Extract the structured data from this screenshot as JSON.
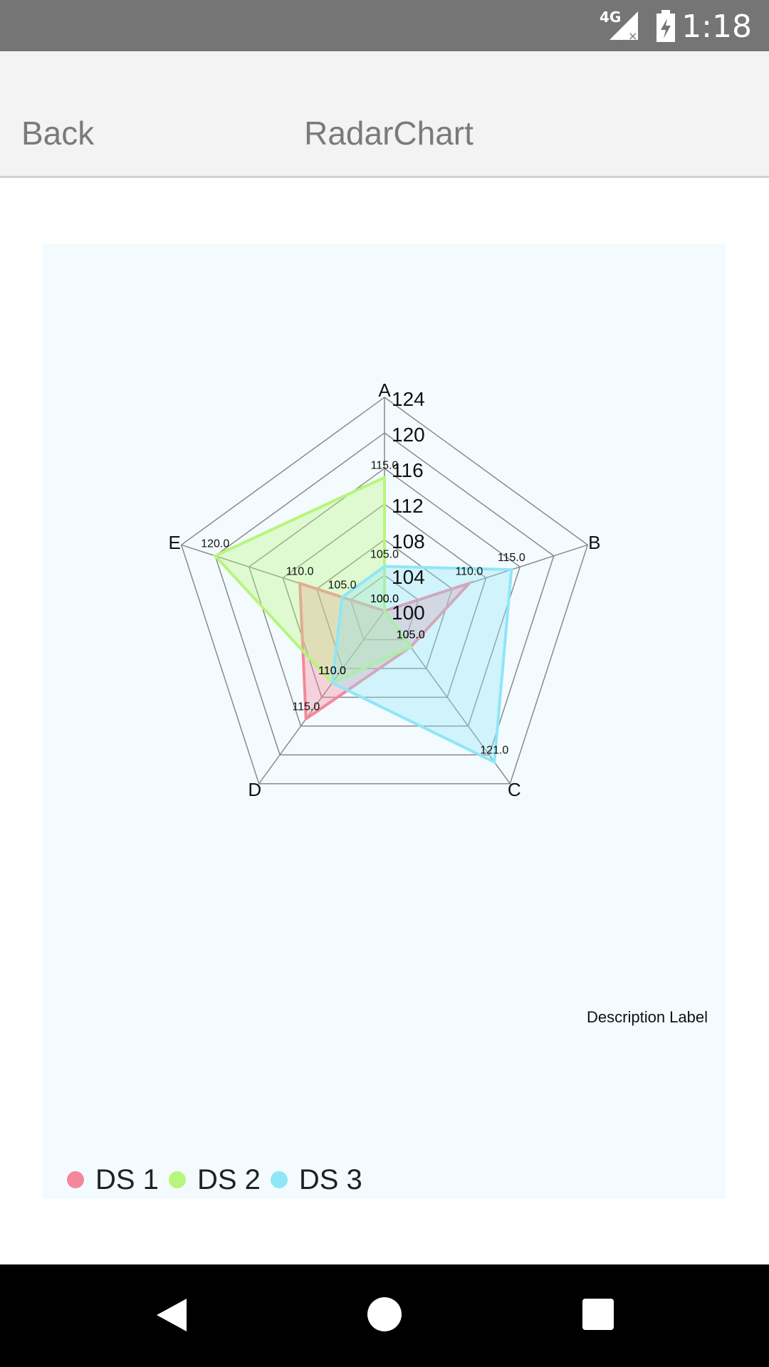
{
  "status_bar": {
    "network": "4G",
    "time": "1:18"
  },
  "header": {
    "back_label": "Back",
    "title": "RadarChart"
  },
  "chart_data": {
    "type": "radar",
    "axes": [
      "A",
      "B",
      "C",
      "D",
      "E"
    ],
    "r_min": 100,
    "r_max": 124,
    "rings": [
      100,
      104,
      108,
      112,
      116,
      120,
      124
    ],
    "ring_labels": [
      "100",
      "104",
      "108",
      "112",
      "116",
      "120",
      "124"
    ],
    "description": "Description Label",
    "series": [
      {
        "name": "DS 1",
        "color": "#f5879a",
        "values": [
          100,
          110,
          105,
          115,
          110
        ],
        "labels": [
          "100.0",
          "110.0",
          "105.0",
          "115.0",
          "110.0"
        ]
      },
      {
        "name": "DS 2",
        "color": "#b7f57c",
        "values": [
          115,
          100,
          105,
          110,
          120
        ],
        "labels": [
          "115.0",
          "100.0",
          "105.0",
          "110.0",
          "120.0"
        ]
      },
      {
        "name": "DS 3",
        "color": "#8fe6f7",
        "values": [
          105,
          115,
          121,
          110,
          105
        ],
        "labels": [
          "105.0",
          "115.0",
          "121.0",
          "110.0",
          "105.0"
        ]
      }
    ]
  },
  "nav_bar": {
    "back_icon": "back-triangle-icon",
    "home_icon": "home-circle-icon",
    "recent_icon": "recents-square-icon"
  }
}
